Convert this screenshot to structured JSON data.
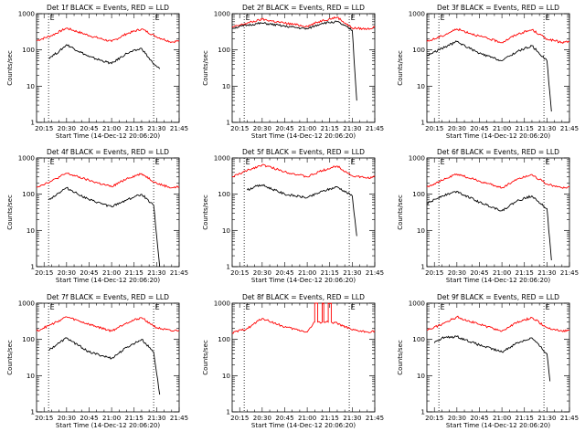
{
  "chart_data": [
    {
      "type": "line",
      "title": "Det 1f BLACK = Events, RED = LLD",
      "xlabel": "Start Time (14-Dec-12 20:06:20)",
      "ylabel": "Counts/sec",
      "yscale": "log",
      "ylim": [
        1,
        1000
      ],
      "xlim": [
        "20:10",
        "21:45"
      ],
      "x_tick_labels": [
        "20:15",
        "20:30",
        "20:45",
        "21:00",
        "21:15",
        "21:30",
        "21:45"
      ],
      "y_tick_labels": [
        "1",
        "10",
        "100",
        "1000"
      ],
      "markers": [
        {
          "label": "E",
          "time": "20:18"
        },
        {
          "label": "E",
          "time": "21:28"
        }
      ],
      "series": [
        {
          "color": "#ff0000",
          "x": [
            "20:10",
            "20:20",
            "20:30",
            "20:45",
            "21:00",
            "21:10",
            "21:20",
            "21:30",
            "21:40",
            "21:45"
          ],
          "values": [
            180,
            250,
            400,
            250,
            170,
            280,
            380,
            230,
            165,
            180
          ]
        },
        {
          "color": "#000000",
          "x": [
            "20:18",
            "20:25",
            "20:30",
            "20:45",
            "21:00",
            "21:10",
            "21:20",
            "21:28",
            "21:32"
          ],
          "values": [
            60,
            90,
            140,
            65,
            42,
            80,
            110,
            40,
            30
          ]
        }
      ]
    },
    {
      "type": "line",
      "title": "Det 2f BLACK = Events, RED = LLD",
      "xlabel": "Start Time (14-Dec-12 20:06:20)",
      "ylabel": "Counts/sec",
      "yscale": "log",
      "ylim": [
        1,
        1000
      ],
      "xlim": [
        "20:10",
        "21:45"
      ],
      "x_tick_labels": [
        "20:15",
        "20:30",
        "20:45",
        "21:00",
        "21:15",
        "21:30",
        "21:45"
      ],
      "y_tick_labels": [
        "1",
        "10",
        "100",
        "1000"
      ],
      "markers": [
        {
          "label": "E",
          "time": "20:18"
        },
        {
          "label": "E",
          "time": "21:28"
        }
      ],
      "series": [
        {
          "color": "#ff0000",
          "x": [
            "20:10",
            "20:20",
            "20:30",
            "20:45",
            "21:00",
            "21:10",
            "21:20",
            "21:30",
            "21:40",
            "21:45"
          ],
          "values": [
            420,
            550,
            700,
            550,
            450,
            650,
            800,
            400,
            380,
            420
          ]
        },
        {
          "color": "#000000",
          "x": [
            "20:10",
            "20:20",
            "20:30",
            "20:45",
            "21:00",
            "21:10",
            "21:20",
            "21:30",
            "21:33"
          ],
          "values": [
            400,
            480,
            550,
            450,
            380,
            550,
            600,
            350,
            4
          ]
        }
      ]
    },
    {
      "type": "line",
      "title": "Det 3f BLACK = Events, RED = LLD",
      "xlabel": "Start Time (14-Dec-12 20:06:20)",
      "ylabel": "Counts/sec",
      "yscale": "log",
      "ylim": [
        1,
        1000
      ],
      "xlim": [
        "20:10",
        "21:45"
      ],
      "x_tick_labels": [
        "20:15",
        "20:30",
        "20:45",
        "21:00",
        "21:15",
        "21:30",
        "21:45"
      ],
      "y_tick_labels": [
        "1",
        "10",
        "100",
        "1000"
      ],
      "markers": [
        {
          "label": "E",
          "time": "20:18"
        },
        {
          "label": "E",
          "time": "21:28"
        }
      ],
      "series": [
        {
          "color": "#ff0000",
          "x": [
            "20:10",
            "20:20",
            "20:30",
            "20:45",
            "21:00",
            "21:10",
            "21:20",
            "21:30",
            "21:40",
            "21:45"
          ],
          "values": [
            170,
            240,
            380,
            240,
            160,
            270,
            360,
            200,
            160,
            170
          ]
        },
        {
          "color": "#000000",
          "x": [
            "20:10",
            "20:20",
            "20:30",
            "20:45",
            "21:00",
            "21:10",
            "21:20",
            "21:30",
            "21:33"
          ],
          "values": [
            70,
            110,
            170,
            80,
            50,
            90,
            130,
            50,
            2
          ]
        }
      ]
    },
    {
      "type": "line",
      "title": "Det 4f BLACK = Events, RED = LLD",
      "xlabel": "Start Time (14-Dec-12 20:06:20)",
      "ylabel": "Counts/sec",
      "yscale": "log",
      "ylim": [
        1,
        1000
      ],
      "xlim": [
        "20:10",
        "21:45"
      ],
      "x_tick_labels": [
        "20:15",
        "20:30",
        "20:45",
        "21:00",
        "21:15",
        "21:30",
        "21:45"
      ],
      "y_tick_labels": [
        "1",
        "10",
        "100",
        "1000"
      ],
      "markers": [
        {
          "label": "E",
          "time": "20:18"
        },
        {
          "label": "E",
          "time": "21:28"
        }
      ],
      "series": [
        {
          "color": "#ff0000",
          "x": [
            "20:10",
            "20:20",
            "20:30",
            "20:45",
            "21:00",
            "21:10",
            "21:20",
            "21:30",
            "21:40",
            "21:45"
          ],
          "values": [
            160,
            230,
            380,
            240,
            160,
            270,
            370,
            200,
            150,
            160
          ]
        },
        {
          "color": "#000000",
          "x": [
            "20:18",
            "20:25",
            "20:30",
            "20:45",
            "21:00",
            "21:10",
            "21:20",
            "21:28",
            "21:32"
          ],
          "values": [
            70,
            110,
            150,
            70,
            45,
            70,
            100,
            50,
            1
          ]
        }
      ]
    },
    {
      "type": "line",
      "title": "Det 5f BLACK = Events, RED = LLD",
      "xlabel": "Start Time (14-Dec-12 20:06:20)",
      "ylabel": "Counts/sec",
      "yscale": "log",
      "ylim": [
        1,
        1000
      ],
      "xlim": [
        "20:10",
        "21:45"
      ],
      "x_tick_labels": [
        "20:15",
        "20:30",
        "20:45",
        "21:00",
        "21:15",
        "21:30",
        "21:45"
      ],
      "y_tick_labels": [
        "1",
        "10",
        "100",
        "1000"
      ],
      "markers": [
        {
          "label": "E",
          "time": "20:18"
        },
        {
          "label": "E",
          "time": "21:28"
        }
      ],
      "series": [
        {
          "color": "#ff0000",
          "x": [
            "20:10",
            "20:20",
            "20:30",
            "20:45",
            "21:00",
            "21:10",
            "21:20",
            "21:30",
            "21:40",
            "21:45"
          ],
          "values": [
            300,
            450,
            650,
            420,
            300,
            450,
            600,
            320,
            280,
            300
          ]
        },
        {
          "color": "#000000",
          "x": [
            "20:20",
            "20:25",
            "20:30",
            "20:45",
            "21:00",
            "21:10",
            "21:20",
            "21:30",
            "21:33"
          ],
          "values": [
            130,
            160,
            180,
            100,
            80,
            120,
            160,
            90,
            7
          ]
        }
      ]
    },
    {
      "type": "line",
      "title": "Det 6f BLACK = Events, RED = LLD",
      "xlabel": "Start Time (14-Dec-12 20:06:20)",
      "ylabel": "Counts/sec",
      "yscale": "log",
      "ylim": [
        1,
        1000
      ],
      "xlim": [
        "20:10",
        "21:45"
      ],
      "x_tick_labels": [
        "20:15",
        "20:30",
        "20:45",
        "21:00",
        "21:15",
        "21:30",
        "21:45"
      ],
      "y_tick_labels": [
        "1",
        "10",
        "100",
        "1000"
      ],
      "markers": [
        {
          "label": "E",
          "time": "20:18"
        },
        {
          "label": "E",
          "time": "21:28"
        }
      ],
      "series": [
        {
          "color": "#ff0000",
          "x": [
            "20:10",
            "20:20",
            "20:30",
            "20:45",
            "21:00",
            "21:10",
            "21:20",
            "21:30",
            "21:40",
            "21:45"
          ],
          "values": [
            160,
            240,
            360,
            230,
            150,
            260,
            350,
            190,
            150,
            160
          ]
        },
        {
          "color": "#000000",
          "x": [
            "20:10",
            "20:20",
            "20:30",
            "20:45",
            "21:00",
            "21:10",
            "21:20",
            "21:30",
            "21:33"
          ],
          "values": [
            55,
            90,
            120,
            60,
            35,
            65,
            90,
            40,
            1.5
          ]
        }
      ]
    },
    {
      "type": "line",
      "title": "Det 7f BLACK = Events, RED = LLD",
      "xlabel": "Start Time (14-Dec-12 20:06:20)",
      "ylabel": "Counts/sec",
      "yscale": "log",
      "ylim": [
        1,
        1000
      ],
      "xlim": [
        "20:10",
        "21:45"
      ],
      "x_tick_labels": [
        "20:15",
        "20:30",
        "20:45",
        "21:00",
        "21:15",
        "21:30",
        "21:45"
      ],
      "y_tick_labels": [
        "1",
        "10",
        "100",
        "1000"
      ],
      "markers": [
        {
          "label": "E",
          "time": "20:18"
        },
        {
          "label": "E",
          "time": "21:28"
        }
      ],
      "series": [
        {
          "color": "#ff0000",
          "x": [
            "20:10",
            "20:20",
            "20:30",
            "20:45",
            "21:00",
            "21:10",
            "21:20",
            "21:30",
            "21:40",
            "21:45"
          ],
          "values": [
            170,
            260,
            420,
            260,
            170,
            290,
            400,
            210,
            170,
            180
          ]
        },
        {
          "color": "#000000",
          "x": [
            "20:18",
            "20:25",
            "20:30",
            "20:45",
            "21:00",
            "21:10",
            "21:20",
            "21:28",
            "21:32"
          ],
          "values": [
            50,
            80,
            110,
            45,
            30,
            60,
            100,
            45,
            3
          ]
        }
      ]
    },
    {
      "type": "line",
      "title": "Det 8f BLACK = Events, RED = LLD",
      "xlabel": "Start Time (14-Dec-12 20:06:20)",
      "ylabel": "Counts/sec",
      "yscale": "log",
      "ylim": [
        1,
        1000
      ],
      "xlim": [
        "20:10",
        "21:45"
      ],
      "x_tick_labels": [
        "20:15",
        "20:30",
        "20:45",
        "21:00",
        "21:15",
        "21:30",
        "21:45"
      ],
      "y_tick_labels": [
        "1",
        "10",
        "100",
        "1000"
      ],
      "markers": [
        {
          "label": "E",
          "time": "20:18"
        },
        {
          "label": "E",
          "time": "21:28"
        }
      ],
      "series": [
        {
          "color": "#ff0000",
          "x": [
            "20:10",
            "20:20",
            "20:30",
            "20:45",
            "21:00",
            "21:05",
            "21:05",
            "21:07",
            "21:07",
            "21:10",
            "21:10",
            "21:11",
            "21:11",
            "21:14",
            "21:14",
            "21:16",
            "21:16",
            "21:20",
            "21:30",
            "21:40",
            "21:45"
          ],
          "values": [
            150,
            200,
            380,
            220,
            160,
            300,
            1000,
            1000,
            300,
            300,
            1000,
            1000,
            300,
            300,
            1000,
            1000,
            300,
            280,
            180,
            160,
            170
          ]
        }
      ]
    },
    {
      "type": "line",
      "title": "Det 9f BLACK = Events, RED = LLD",
      "xlabel": "Start Time (14-Dec-12 20:06:20)",
      "ylabel": "Counts/sec",
      "yscale": "log",
      "ylim": [
        1,
        1000
      ],
      "xlim": [
        "20:10",
        "21:45"
      ],
      "x_tick_labels": [
        "20:15",
        "20:30",
        "20:45",
        "21:00",
        "21:15",
        "21:30",
        "21:45"
      ],
      "y_tick_labels": [
        "1",
        "10",
        "100",
        "1000"
      ],
      "markers": [
        {
          "label": "E",
          "time": "20:18"
        },
        {
          "label": "E",
          "time": "21:28"
        }
      ],
      "series": [
        {
          "color": "#ff0000",
          "x": [
            "20:10",
            "20:20",
            "20:30",
            "20:45",
            "21:00",
            "21:10",
            "21:20",
            "21:30",
            "21:40",
            "21:45"
          ],
          "values": [
            180,
            260,
            420,
            260,
            170,
            290,
            400,
            210,
            170,
            180
          ]
        },
        {
          "color": "#000000",
          "x": [
            "20:15",
            "20:20",
            "20:30",
            "20:45",
            "21:00",
            "21:10",
            "21:20",
            "21:30",
            "21:32"
          ],
          "values": [
            80,
            110,
            120,
            70,
            45,
            80,
            110,
            40,
            7
          ]
        }
      ]
    }
  ]
}
